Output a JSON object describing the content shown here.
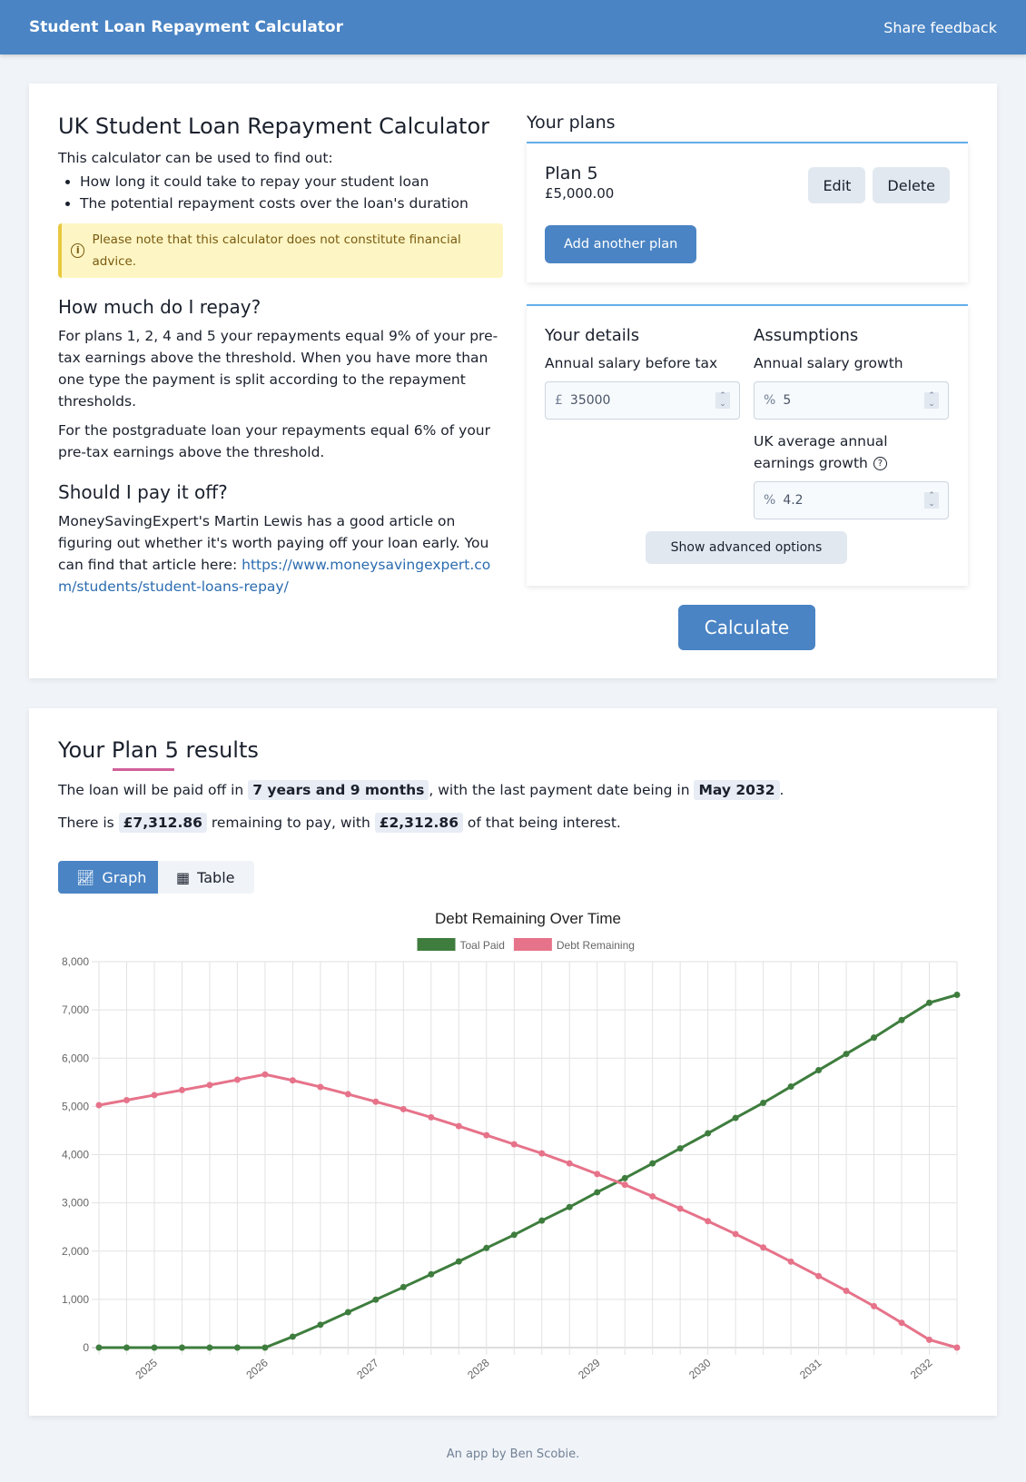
{
  "header": {
    "title": "Student Loan Repayment Calculator",
    "feedback": "Share feedback"
  },
  "intro": {
    "title": "UK Student Loan Repayment Calculator",
    "lead": "This calculator can be used to find out:",
    "bullets": [
      "How long it could take to repay your student loan",
      "The potential repayment costs over the loan's duration"
    ],
    "note": "Please note that this calculator does not constitute financial advice.",
    "h_repay": "How much do I repay?",
    "p_repay1": "For plans 1, 2, 4 and 5 your repayments equal 9% of your pre-tax earnings above the threshold. When you have more than one type the payment is split according to the repayment thresholds.",
    "p_repay2": "For the postgraduate loan your repayments equal 6% of your pre-tax earnings above the threshold.",
    "h_payoff": "Should I pay it off?",
    "p_payoff": "MoneySavingExpert's Martin Lewis has a good article on figuring out whether it's worth paying off your loan early. You can find that article here: ",
    "link": "https://www.moneysavingexpert.com/students/student-loans-repay/"
  },
  "plans": {
    "title": "Your plans",
    "items": [
      {
        "name": "Plan 5",
        "amount": "£5,000.00"
      }
    ],
    "edit": "Edit",
    "delete": "Delete",
    "add": "Add another plan"
  },
  "details": {
    "title": "Your details",
    "salary_label": "Annual salary before tax",
    "salary_unit": "£",
    "salary": "35000"
  },
  "assumptions": {
    "title": "Assumptions",
    "growth_label": "Annual salary growth",
    "growth_unit": "%",
    "growth": "5",
    "uk_label": "UK average annual earnings growth",
    "uk_unit": "%",
    "uk": "4.2"
  },
  "advanced": "Show advanced options",
  "calculate": "Calculate",
  "results": {
    "t1": "Your ",
    "t2": "Plan 5",
    "t3": " results",
    "s1a": "The loan will be paid off in ",
    "duration": "7 years and 9 months",
    "s1b": ", with the last payment date being in ",
    "last_date": "May 2032",
    "s1c": ".",
    "s2a": "There is ",
    "remaining": "£7,312.86",
    "s2b": " remaining to pay, with ",
    "interest": "£2,312.86",
    "s2c": " of that being interest.",
    "tab_graph": "Graph",
    "tab_table": "Table",
    "active_tab": "Graph"
  },
  "chart_data": {
    "type": "line",
    "title": "Debt Remaining Over Time",
    "xlabel": "",
    "ylabel": "",
    "ylim": [
      0,
      8000
    ],
    "yticks": [
      0,
      1000,
      2000,
      3000,
      4000,
      5000,
      6000,
      7000,
      8000
    ],
    "ytick_labels": [
      "0",
      "1,000",
      "2,000",
      "3,000",
      "4,000",
      "5,000",
      "6,000",
      "7,000",
      "8,000"
    ],
    "xtick_labels": [
      {
        "index": 2,
        "label": "2025"
      },
      {
        "index": 6,
        "label": "2026"
      },
      {
        "index": 10,
        "label": "2027"
      },
      {
        "index": 14,
        "label": "2028"
      },
      {
        "index": 18,
        "label": "2029"
      },
      {
        "index": 22,
        "label": "2030"
      },
      {
        "index": 26,
        "label": "2031"
      },
      {
        "index": 30,
        "label": "2032"
      }
    ],
    "grid": true,
    "legend": "top",
    "series": [
      {
        "name": "Toal Paid",
        "color": "#3e7d3e",
        "values": [
          0,
          0,
          0,
          0,
          0,
          0,
          0,
          227,
          474,
          734,
          994,
          1253,
          1519,
          1786,
          2065,
          2338,
          2632,
          2914,
          3220,
          3512,
          3818,
          4130,
          4442,
          4761,
          5073,
          5411,
          5750,
          6088,
          6426,
          6790,
          7148,
          7313
        ]
      },
      {
        "name": "Debt Remaining",
        "color": "#e6738a",
        "values": [
          5026,
          5130,
          5234,
          5338,
          5442,
          5552,
          5662,
          5539,
          5403,
          5253,
          5097,
          4942,
          4773,
          4591,
          4403,
          4214,
          4026,
          3818,
          3597,
          3376,
          3135,
          2881,
          2621,
          2354,
          2075,
          1782,
          1483,
          1177,
          859,
          514,
          163,
          0
        ]
      }
    ]
  },
  "footer": "An app by Ben Scobie."
}
